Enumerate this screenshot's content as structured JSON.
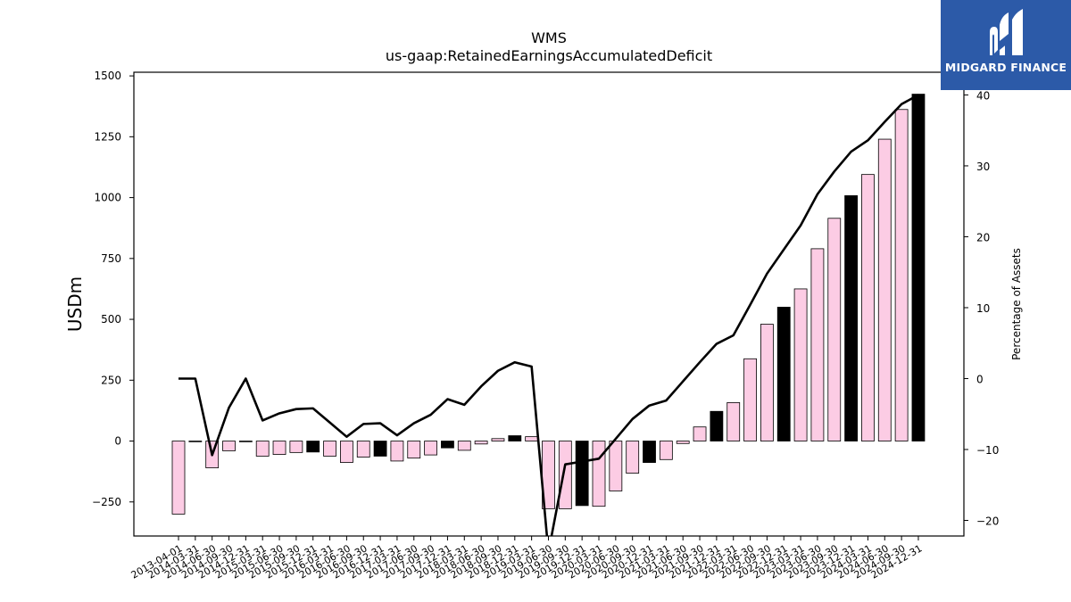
{
  "logo": {
    "text": "MIDGARD FINANCE",
    "icon": "midgard-logo-icon",
    "bg_color": "#2c5aa8"
  },
  "chart_data": {
    "type": "bar",
    "title": "WMS",
    "subtitle": "us-gaap:RetainedEarningsAccumulatedDeficit",
    "xlabel": "",
    "ylabel": "USDm",
    "y2label": "Percentage of Assets",
    "ylim": [
      -390,
      1515
    ],
    "y2lim": [
      -22.2,
      43.2
    ],
    "yticks": [
      -250,
      0,
      250,
      500,
      750,
      1000,
      1250,
      1500
    ],
    "y2ticks": [
      -20,
      -10,
      0,
      10,
      20,
      30,
      40
    ],
    "grid": false,
    "colors": {
      "bar": "#fccce4",
      "highlight": "#000000",
      "line": "#000000",
      "edge": "#000000"
    },
    "categories": [
      "2013-04-01",
      "2014-03-31",
      "2014-06-30",
      "2014-09-30",
      "2014-12-31",
      "2015-03-31",
      "2015-06-30",
      "2015-09-30",
      "2015-12-31",
      "2016-03-31",
      "2016-06-30",
      "2016-09-30",
      "2016-12-31",
      "2017-03-31",
      "2017-06-30",
      "2017-09-30",
      "2017-12-31",
      "2018-03-31",
      "2018-06-30",
      "2018-09-30",
      "2018-12-31",
      "2019-03-31",
      "2019-06-30",
      "2019-09-30",
      "2019-12-31",
      "2020-03-31",
      "2020-06-30",
      "2020-09-30",
      "2020-12-31",
      "2021-03-31",
      "2021-06-30",
      "2021-09-30",
      "2021-12-31",
      "2022-03-31",
      "2022-06-30",
      "2022-09-30",
      "2022-12-31",
      "2023-03-31",
      "2023-06-30",
      "2023-09-30",
      "2023-12-31",
      "2024-03-31",
      "2024-06-30",
      "2024-09-30",
      "2024-12-31"
    ],
    "series": [
      {
        "type": "bar",
        "axis": "left",
        "values": [
          -300,
          -2,
          -110,
          -40,
          -2,
          -62,
          -55,
          -47,
          -45,
          -62,
          -88,
          -66,
          -62,
          -82,
          -70,
          -57,
          -28,
          -38,
          -12,
          10,
          22,
          18,
          -278,
          -278,
          -265,
          -268,
          -205,
          -132,
          -88,
          -76,
          -10,
          58,
          122,
          158,
          338,
          480,
          550,
          625,
          790,
          915,
          1008,
          1095,
          1240,
          1362,
          1425
        ],
        "highlight": [
          false,
          false,
          false,
          false,
          false,
          false,
          false,
          false,
          true,
          false,
          false,
          false,
          true,
          false,
          false,
          false,
          true,
          false,
          false,
          false,
          true,
          false,
          false,
          false,
          true,
          false,
          false,
          false,
          true,
          false,
          false,
          false,
          true,
          false,
          false,
          false,
          true,
          false,
          false,
          false,
          true,
          false,
          false,
          false,
          true
        ]
      },
      {
        "type": "line",
        "axis": "right",
        "values": [
          0.0,
          0.0,
          -10.8,
          -4.1,
          0.0,
          -5.9,
          -4.9,
          -4.3,
          -4.2,
          -6.2,
          -8.2,
          -6.4,
          -6.3,
          -8.0,
          -6.3,
          -5.1,
          -2.9,
          -3.7,
          -1.1,
          1.1,
          2.3,
          1.7,
          -24.5,
          -12.1,
          -11.7,
          -11.3,
          -8.5,
          -5.7,
          -3.8,
          -3.1,
          -0.4,
          2.3,
          4.9,
          6.1,
          10.4,
          14.8,
          18.2,
          21.6,
          26.0,
          29.2,
          32.0,
          33.6,
          36.2,
          38.7,
          40.0
        ]
      }
    ]
  }
}
